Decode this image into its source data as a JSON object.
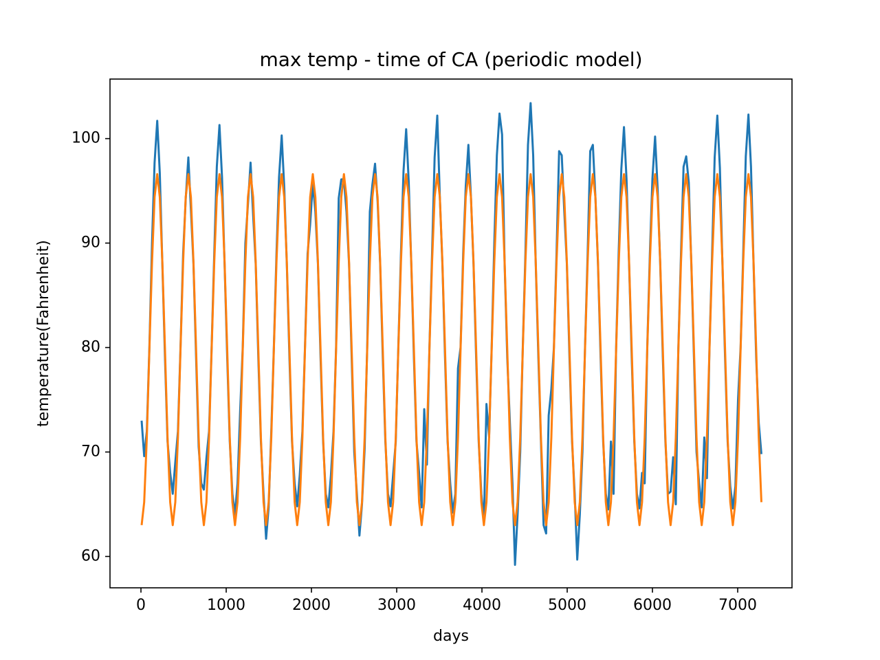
{
  "chart_data": {
    "type": "line",
    "title": "max temp - time of CA (periodic model)",
    "x_label": "days",
    "y_label": "temperature(Fahrenheit)",
    "xlim": [
      -363,
      7637
    ],
    "ylim": [
      57,
      105.7
    ],
    "xticks": [
      0,
      1000,
      2000,
      3000,
      4000,
      5000,
      6000,
      7000
    ],
    "yticks": [
      60,
      70,
      80,
      90,
      100
    ],
    "grid": false,
    "x": [
      8,
      38,
      69,
      99,
      130,
      160,
      191,
      221,
      251,
      282,
      312,
      343,
      373,
      403,
      434,
      464,
      495,
      525,
      556,
      586,
      616,
      647,
      677,
      708,
      738,
      768,
      799,
      829,
      860,
      890,
      921,
      951,
      981,
      1012,
      1042,
      1073,
      1103,
      1133,
      1164,
      1194,
      1225,
      1255,
      1286,
      1316,
      1346,
      1377,
      1407,
      1438,
      1468,
      1498,
      1529,
      1559,
      1590,
      1620,
      1651,
      1681,
      1711,
      1742,
      1772,
      1803,
      1833,
      1863,
      1894,
      1924,
      1955,
      1985,
      2016,
      2046,
      2076,
      2107,
      2137,
      2168,
      2198,
      2228,
      2259,
      2289,
      2320,
      2350,
      2381,
      2411,
      2441,
      2472,
      2502,
      2533,
      2563,
      2593,
      2624,
      2654,
      2685,
      2715,
      2746,
      2776,
      2806,
      2837,
      2867,
      2898,
      2928,
      2958,
      2989,
      3019,
      3050,
      3080,
      3111,
      3141,
      3171,
      3202,
      3232,
      3263,
      3293,
      3323,
      3354,
      3384,
      3415,
      3445,
      3476,
      3506,
      3536,
      3567,
      3597,
      3628,
      3658,
      3688,
      3719,
      3749,
      3780,
      3810,
      3841,
      3871,
      3901,
      3932,
      3962,
      3993,
      4023,
      4053,
      4084,
      4114,
      4145,
      4175,
      4206,
      4236,
      4266,
      4297,
      4327,
      4358,
      4388,
      4418,
      4449,
      4479,
      4510,
      4540,
      4571,
      4601,
      4631,
      4662,
      4692,
      4723,
      4753,
      4783,
      4814,
      4844,
      4875,
      4905,
      4936,
      4966,
      4996,
      5027,
      5057,
      5088,
      5118,
      5148,
      5179,
      5209,
      5240,
      5270,
      5301,
      5331,
      5361,
      5392,
      5422,
      5453,
      5483,
      5513,
      5544,
      5574,
      5605,
      5635,
      5666,
      5696,
      5726,
      5757,
      5787,
      5818,
      5848,
      5878,
      5909,
      5939,
      5970,
      6000,
      6031,
      6061,
      6091,
      6122,
      6152,
      6183,
      6213,
      6243,
      6274,
      6304,
      6335,
      6365,
      6396,
      6426,
      6456,
      6487,
      6517,
      6548,
      6578,
      6608,
      6639,
      6669,
      6700,
      6730,
      6761,
      6791,
      6821,
      6852,
      6882,
      6913,
      6943,
      6973,
      7004,
      7034,
      7065,
      7095,
      7126,
      7156,
      7186,
      7217,
      7247,
      7278
    ],
    "series": [
      {
        "color": "#1f77b4",
        "values": [
          73,
          69.6,
          72,
          80,
          90,
          97.7,
          101.7,
          96.7,
          88,
          79,
          71,
          68,
          66,
          69,
          72,
          80,
          89,
          94.2,
          98.2,
          93.2,
          88,
          79,
          70.5,
          67,
          66.4,
          69.4,
          72,
          80,
          89,
          97.3,
          101.3,
          96.3,
          88,
          79,
          71,
          66,
          64,
          67,
          74,
          80,
          90,
          93.7,
          97.7,
          92.7,
          88,
          79,
          71,
          66,
          61.7,
          64.7,
          72,
          80,
          89,
          96.3,
          100.3,
          95.3,
          88,
          79,
          71,
          67,
          64.8,
          67.8,
          72,
          80,
          89,
          91.8,
          95.8,
          93,
          88,
          79,
          71,
          66,
          64.7,
          67.7,
          72,
          80,
          94.3,
          96.1,
          96.1,
          93,
          88,
          79,
          70,
          66,
          62,
          65,
          70.3,
          80,
          93,
          95.6,
          97.6,
          94,
          88,
          79,
          71,
          66,
          64.8,
          67.8,
          71,
          80,
          89,
          96.9,
          100.9,
          95.9,
          88,
          79,
          71,
          68,
          64.7,
          74.1,
          68.8,
          80,
          89,
          98.2,
          102.2,
          94.4,
          88,
          79,
          71,
          67,
          64.2,
          66,
          78,
          80,
          89,
          95.4,
          99.4,
          94.4,
          88,
          79,
          71,
          66,
          63.3,
          74.6,
          71.4,
          80,
          90,
          98.4,
          102.4,
          100.4,
          88,
          79,
          73,
          67,
          59.2,
          64,
          70,
          80,
          89,
          99.4,
          103.4,
          98.4,
          88,
          79,
          71,
          63,
          62.2,
          73.5,
          76,
          80,
          89,
          98.8,
          98.4,
          93,
          88,
          79,
          71,
          66,
          59.7,
          64,
          70,
          80,
          89,
          98.8,
          99.4,
          94.4,
          88,
          79,
          71,
          66,
          64.5,
          71,
          66,
          80,
          89.4,
          97.1,
          101.1,
          96.1,
          88,
          79,
          71,
          66,
          64.6,
          68,
          67,
          80,
          89,
          96.2,
          100.2,
          95.2,
          88,
          79,
          71,
          66,
          66.2,
          69.5,
          65,
          80,
          89,
          97.3,
          98.3,
          95.8,
          88,
          79,
          70,
          67,
          64.7,
          71.4,
          67.5,
          80,
          89,
          98.2,
          102.2,
          97.2,
          88,
          79,
          71,
          66.7,
          64.6,
          66.7,
          75,
          80,
          89,
          98.3,
          102.3,
          97.3,
          88,
          79,
          72.8,
          69.8
        ]
      },
      {
        "color": "#ff7f0e",
        "values": [
          63,
          65.2,
          71.4,
          79.8,
          88.2,
          94.4,
          96.6,
          94.4,
          88.2,
          79.8,
          71.4,
          65.2,
          63,
          65.2,
          71.4,
          79.8,
          88.2,
          94.4,
          96.6,
          94.4,
          88.2,
          79.8,
          71.4,
          65.2,
          63,
          65.2,
          71.4,
          79.8,
          88.2,
          94.4,
          96.6,
          94.4,
          88.2,
          79.8,
          71.4,
          65.2,
          63,
          65.2,
          71.4,
          79.8,
          88.2,
          94.4,
          96.6,
          94.4,
          88.2,
          79.8,
          71.4,
          65.2,
          63,
          65.2,
          71.4,
          79.8,
          88.2,
          94.4,
          96.6,
          94.4,
          88.2,
          79.8,
          71.4,
          65.2,
          63,
          65.2,
          71.4,
          79.8,
          88.2,
          94.4,
          96.6,
          94.4,
          88.2,
          79.8,
          71.4,
          65.2,
          63,
          65.2,
          71.4,
          79.8,
          88.2,
          94.4,
          96.6,
          94.4,
          88.2,
          79.8,
          71.4,
          65.2,
          63,
          65.2,
          71.4,
          79.8,
          88.2,
          94.4,
          96.6,
          94.4,
          88.2,
          79.8,
          71.4,
          65.2,
          63,
          65.2,
          71.4,
          79.8,
          88.2,
          94.4,
          96.6,
          94.4,
          88.2,
          79.8,
          71.4,
          65.2,
          63,
          65.2,
          71.4,
          79.8,
          88.2,
          94.4,
          96.6,
          94.4,
          88.2,
          79.8,
          71.4,
          65.2,
          63,
          65.2,
          71.4,
          79.8,
          88.2,
          94.4,
          96.6,
          94.4,
          88.2,
          79.8,
          71.4,
          65.2,
          63,
          65.2,
          71.4,
          79.8,
          88.2,
          94.4,
          96.6,
          94.4,
          88.2,
          79.8,
          71.4,
          65.2,
          63,
          65.2,
          71.4,
          79.8,
          88.2,
          94.4,
          96.6,
          94.4,
          88.2,
          79.8,
          71.4,
          65.2,
          63,
          65.2,
          71.4,
          79.8,
          88.2,
          94.4,
          96.6,
          94.4,
          88.2,
          79.8,
          71.4,
          65.2,
          63,
          65.2,
          71.4,
          79.8,
          88.2,
          94.4,
          96.6,
          94.4,
          88.2,
          79.8,
          71.4,
          65.2,
          63,
          65.2,
          71.4,
          79.8,
          88.2,
          94.4,
          96.6,
          94.4,
          88.2,
          79.8,
          71.4,
          65.2,
          63,
          65.2,
          71.4,
          79.8,
          88.2,
          94.4,
          96.6,
          94.4,
          88.2,
          79.8,
          71.4,
          65.2,
          63,
          65.2,
          71.4,
          79.8,
          88.2,
          94.4,
          96.6,
          94.4,
          88.2,
          79.8,
          71.4,
          65.2,
          63,
          65.2,
          71.4,
          79.8,
          88.2,
          94.4,
          96.6,
          94.4,
          88.2,
          79.8,
          71.4,
          65.2,
          63,
          65.2,
          71.4,
          79.8,
          88.2,
          94.4,
          96.6,
          94.4,
          88.2,
          79.8,
          71.4,
          65.2
        ]
      }
    ]
  }
}
